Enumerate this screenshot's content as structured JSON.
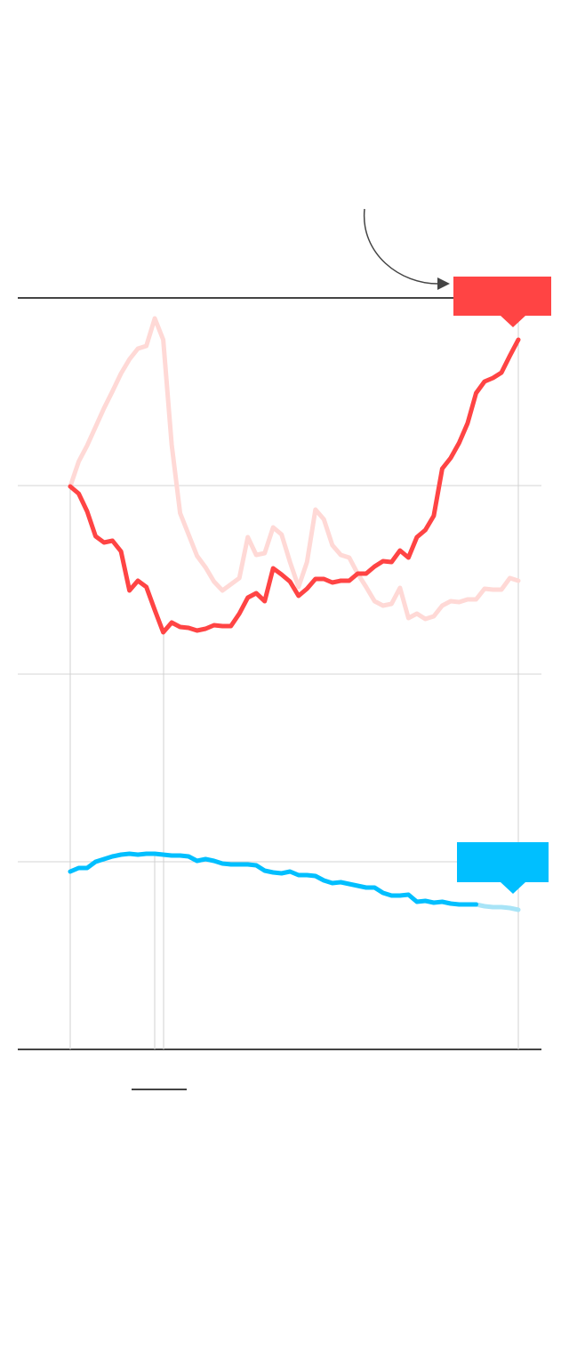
{
  "chart_data": {
    "type": "line",
    "categories": [
      null,
      null,
      null,
      null,
      null,
      null,
      null,
      null,
      null,
      null,
      null,
      null,
      null,
      null,
      null,
      null,
      null,
      null,
      null,
      null,
      null,
      null,
      null,
      null,
      null,
      null,
      null,
      null,
      null,
      null,
      null,
      null,
      null,
      null,
      null,
      null,
      null,
      null,
      null,
      null,
      null,
      null,
      null,
      null,
      null,
      null,
      null,
      null,
      null,
      null,
      null,
      null,
      null,
      null
    ],
    "ylim": [
      0,
      845
    ],
    "yticks": [
      0,
      211,
      422,
      634,
      845
    ],
    "grid": true,
    "series": [
      {
        "color": "#ffd9d6",
        "values": [
          633,
          661,
          679,
          700,
          721,
          740,
          760,
          776,
          788,
          791,
          822,
          798,
          680,
          603,
          579,
          555,
          542,
          526,
          516,
          523,
          530,
          576,
          556,
          558,
          587,
          579,
          548,
          520,
          548,
          607,
          596,
          567,
          556,
          553,
          535,
          520,
          504,
          499,
          501,
          519,
          485,
          490,
          484,
          487,
          499,
          504,
          503,
          506,
          506,
          518,
          517,
          517,
          530,
          527
        ]
      },
      {
        "color": "#ff4444",
        "values": [
          633,
          625,
          605,
          577,
          570,
          572,
          560,
          516,
          527,
          520,
          494,
          469,
          480,
          475,
          474,
          471,
          473,
          477,
          476,
          476,
          490,
          508,
          513,
          504,
          541,
          534,
          526,
          510,
          518,
          529,
          529,
          525,
          527,
          527,
          535,
          535,
          543,
          549,
          548,
          561,
          553,
          576,
          584,
          600,
          653,
          665,
          682,
          704,
          738,
          751,
          755,
          761,
          780,
          798
        ]
      },
      {
        "color": "#a8e4f7",
        "values": [
          null,
          null,
          null,
          null,
          null,
          null,
          null,
          null,
          null,
          null,
          null,
          null,
          null,
          null,
          null,
          null,
          null,
          null,
          null,
          null,
          null,
          null,
          null,
          null,
          null,
          null,
          null,
          null,
          null,
          null,
          null,
          null,
          null,
          null,
          null,
          null,
          null,
          null,
          null,
          null,
          null,
          null,
          null,
          null,
          null,
          null,
          null,
          null,
          163,
          161,
          160,
          160,
          159,
          157
        ]
      },
      {
        "color": "#00bfff",
        "values": [
          200,
          204,
          204,
          211,
          214,
          217,
          219,
          220,
          219,
          220,
          220,
          219,
          218,
          218,
          217,
          212,
          214,
          212,
          209,
          208,
          208,
          208,
          207,
          201,
          199,
          198,
          200,
          196,
          196,
          195,
          190,
          187,
          188,
          186,
          184,
          182,
          182,
          176,
          173,
          173,
          174,
          166,
          167,
          165,
          166,
          164,
          163,
          163,
          163,
          null,
          null,
          null,
          null,
          null
        ]
      }
    ]
  }
}
